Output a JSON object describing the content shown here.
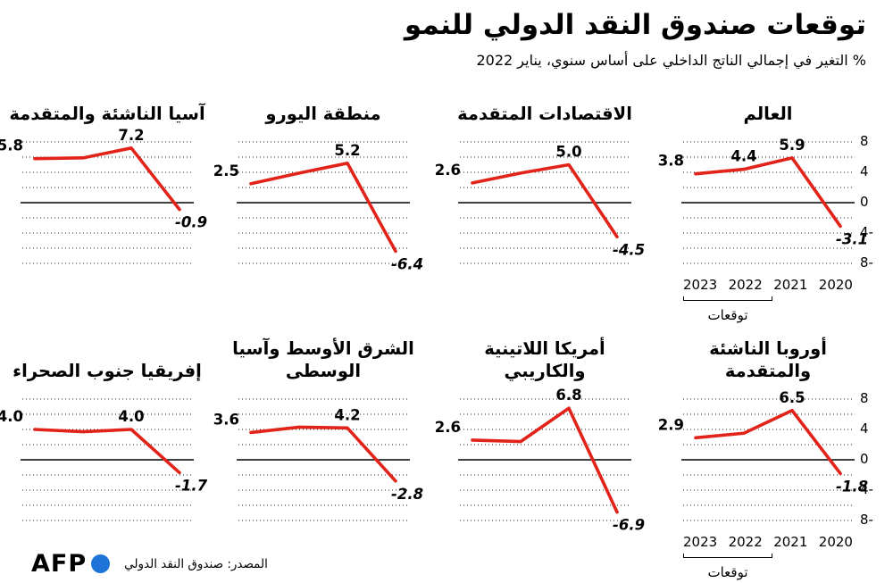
{
  "header": {
    "title": "توقعات صندوق النقد الدولي للنمو",
    "subtitle": "% التغير في إجمالي الناتج الداخلي على أساس سنوي، يناير 2022"
  },
  "axis": {
    "y_labels": [
      "8",
      "4",
      "0",
      "4-",
      "8-"
    ],
    "years": [
      "2023",
      "2022",
      "2021",
      "2020"
    ],
    "forecast_label": "توقعات"
  },
  "footer": {
    "logo": "AFP",
    "source": "المصدر: صندوق النقد الدولي"
  },
  "colors": {
    "line": "#e2231a",
    "logo_blue": "#1d74d6",
    "text": "#000000"
  },
  "chart_data": [
    {
      "type": "line",
      "id": "world",
      "title": "العالم",
      "categories": [
        "2023",
        "2022",
        "2021",
        "2020"
      ],
      "values": [
        3.8,
        4.4,
        5.9,
        -3.1
      ],
      "point_labels": [
        "3.8",
        "4.4",
        "5.9",
        "3.1-"
      ],
      "ylim": [
        -8,
        8
      ],
      "grid": "dotted",
      "show_y_axis": true,
      "show_years": true
    },
    {
      "type": "line",
      "id": "advanced-economies",
      "title": "الاقتصادات المتقدمة",
      "categories": [
        "2023",
        "2022",
        "2021",
        "2020"
      ],
      "values": [
        2.6,
        3.9,
        5.0,
        -4.5
      ],
      "point_labels": [
        "2.6",
        null,
        "5.0",
        "4.5-"
      ],
      "ylim": [
        -8,
        8
      ],
      "grid": "dotted",
      "show_y_axis": false,
      "show_years": false
    },
    {
      "type": "line",
      "id": "euro-area",
      "title": "منطقة اليورو",
      "categories": [
        "2023",
        "2022",
        "2021",
        "2020"
      ],
      "values": [
        2.5,
        3.9,
        5.2,
        -6.4
      ],
      "point_labels": [
        "2.5",
        null,
        "5.2",
        "6.4-"
      ],
      "ylim": [
        -8,
        8
      ],
      "grid": "dotted",
      "show_y_axis": false,
      "show_years": false
    },
    {
      "type": "line",
      "id": "emerging-asia",
      "title": "آسيا الناشئة والمتقدمة",
      "categories": [
        "2023",
        "2022",
        "2021",
        "2020"
      ],
      "values": [
        5.8,
        5.9,
        7.2,
        -0.9
      ],
      "point_labels": [
        "5.8",
        null,
        "7.2",
        "0.9-"
      ],
      "ylim": [
        -8,
        8
      ],
      "grid": "dotted",
      "show_y_axis": false,
      "show_years": false
    },
    {
      "type": "line",
      "id": "emerging-europe",
      "title": "أوروبا الناشئة والمتقدمة",
      "categories": [
        "2023",
        "2022",
        "2021",
        "2020"
      ],
      "values": [
        2.9,
        3.5,
        6.5,
        -1.8
      ],
      "point_labels": [
        "2.9",
        null,
        "6.5",
        "1.8-"
      ],
      "ylim": [
        -8,
        8
      ],
      "grid": "dotted",
      "show_y_axis": true,
      "show_years": true
    },
    {
      "type": "line",
      "id": "latin-america-caribbean",
      "title": "أمريكا اللاتينية والكاريبي",
      "categories": [
        "2023",
        "2022",
        "2021",
        "2020"
      ],
      "values": [
        2.6,
        2.4,
        6.8,
        -6.9
      ],
      "point_labels": [
        "2.6",
        null,
        "6.8",
        "6.9-"
      ],
      "ylim": [
        -8,
        8
      ],
      "grid": "dotted",
      "show_y_axis": false,
      "show_years": false
    },
    {
      "type": "line",
      "id": "middle-east-central-asia",
      "title": "الشرق الأوسط وآسيا الوسطى",
      "categories": [
        "2023",
        "2022",
        "2021",
        "2020"
      ],
      "values": [
        3.6,
        4.3,
        4.2,
        -2.8
      ],
      "point_labels": [
        "3.6",
        null,
        "4.2",
        "2.8-"
      ],
      "ylim": [
        -8,
        8
      ],
      "grid": "dotted",
      "show_y_axis": false,
      "show_years": false
    },
    {
      "type": "line",
      "id": "sub-saharan-africa",
      "title": "إفريقيا جنوب الصحراء",
      "categories": [
        "2023",
        "2022",
        "2021",
        "2020"
      ],
      "values": [
        4.0,
        3.7,
        4.0,
        -1.7
      ],
      "point_labels": [
        "4.0",
        null,
        "4.0",
        "1.7-"
      ],
      "ylim": [
        -8,
        8
      ],
      "grid": "dotted",
      "show_y_axis": false,
      "show_years": false
    }
  ]
}
